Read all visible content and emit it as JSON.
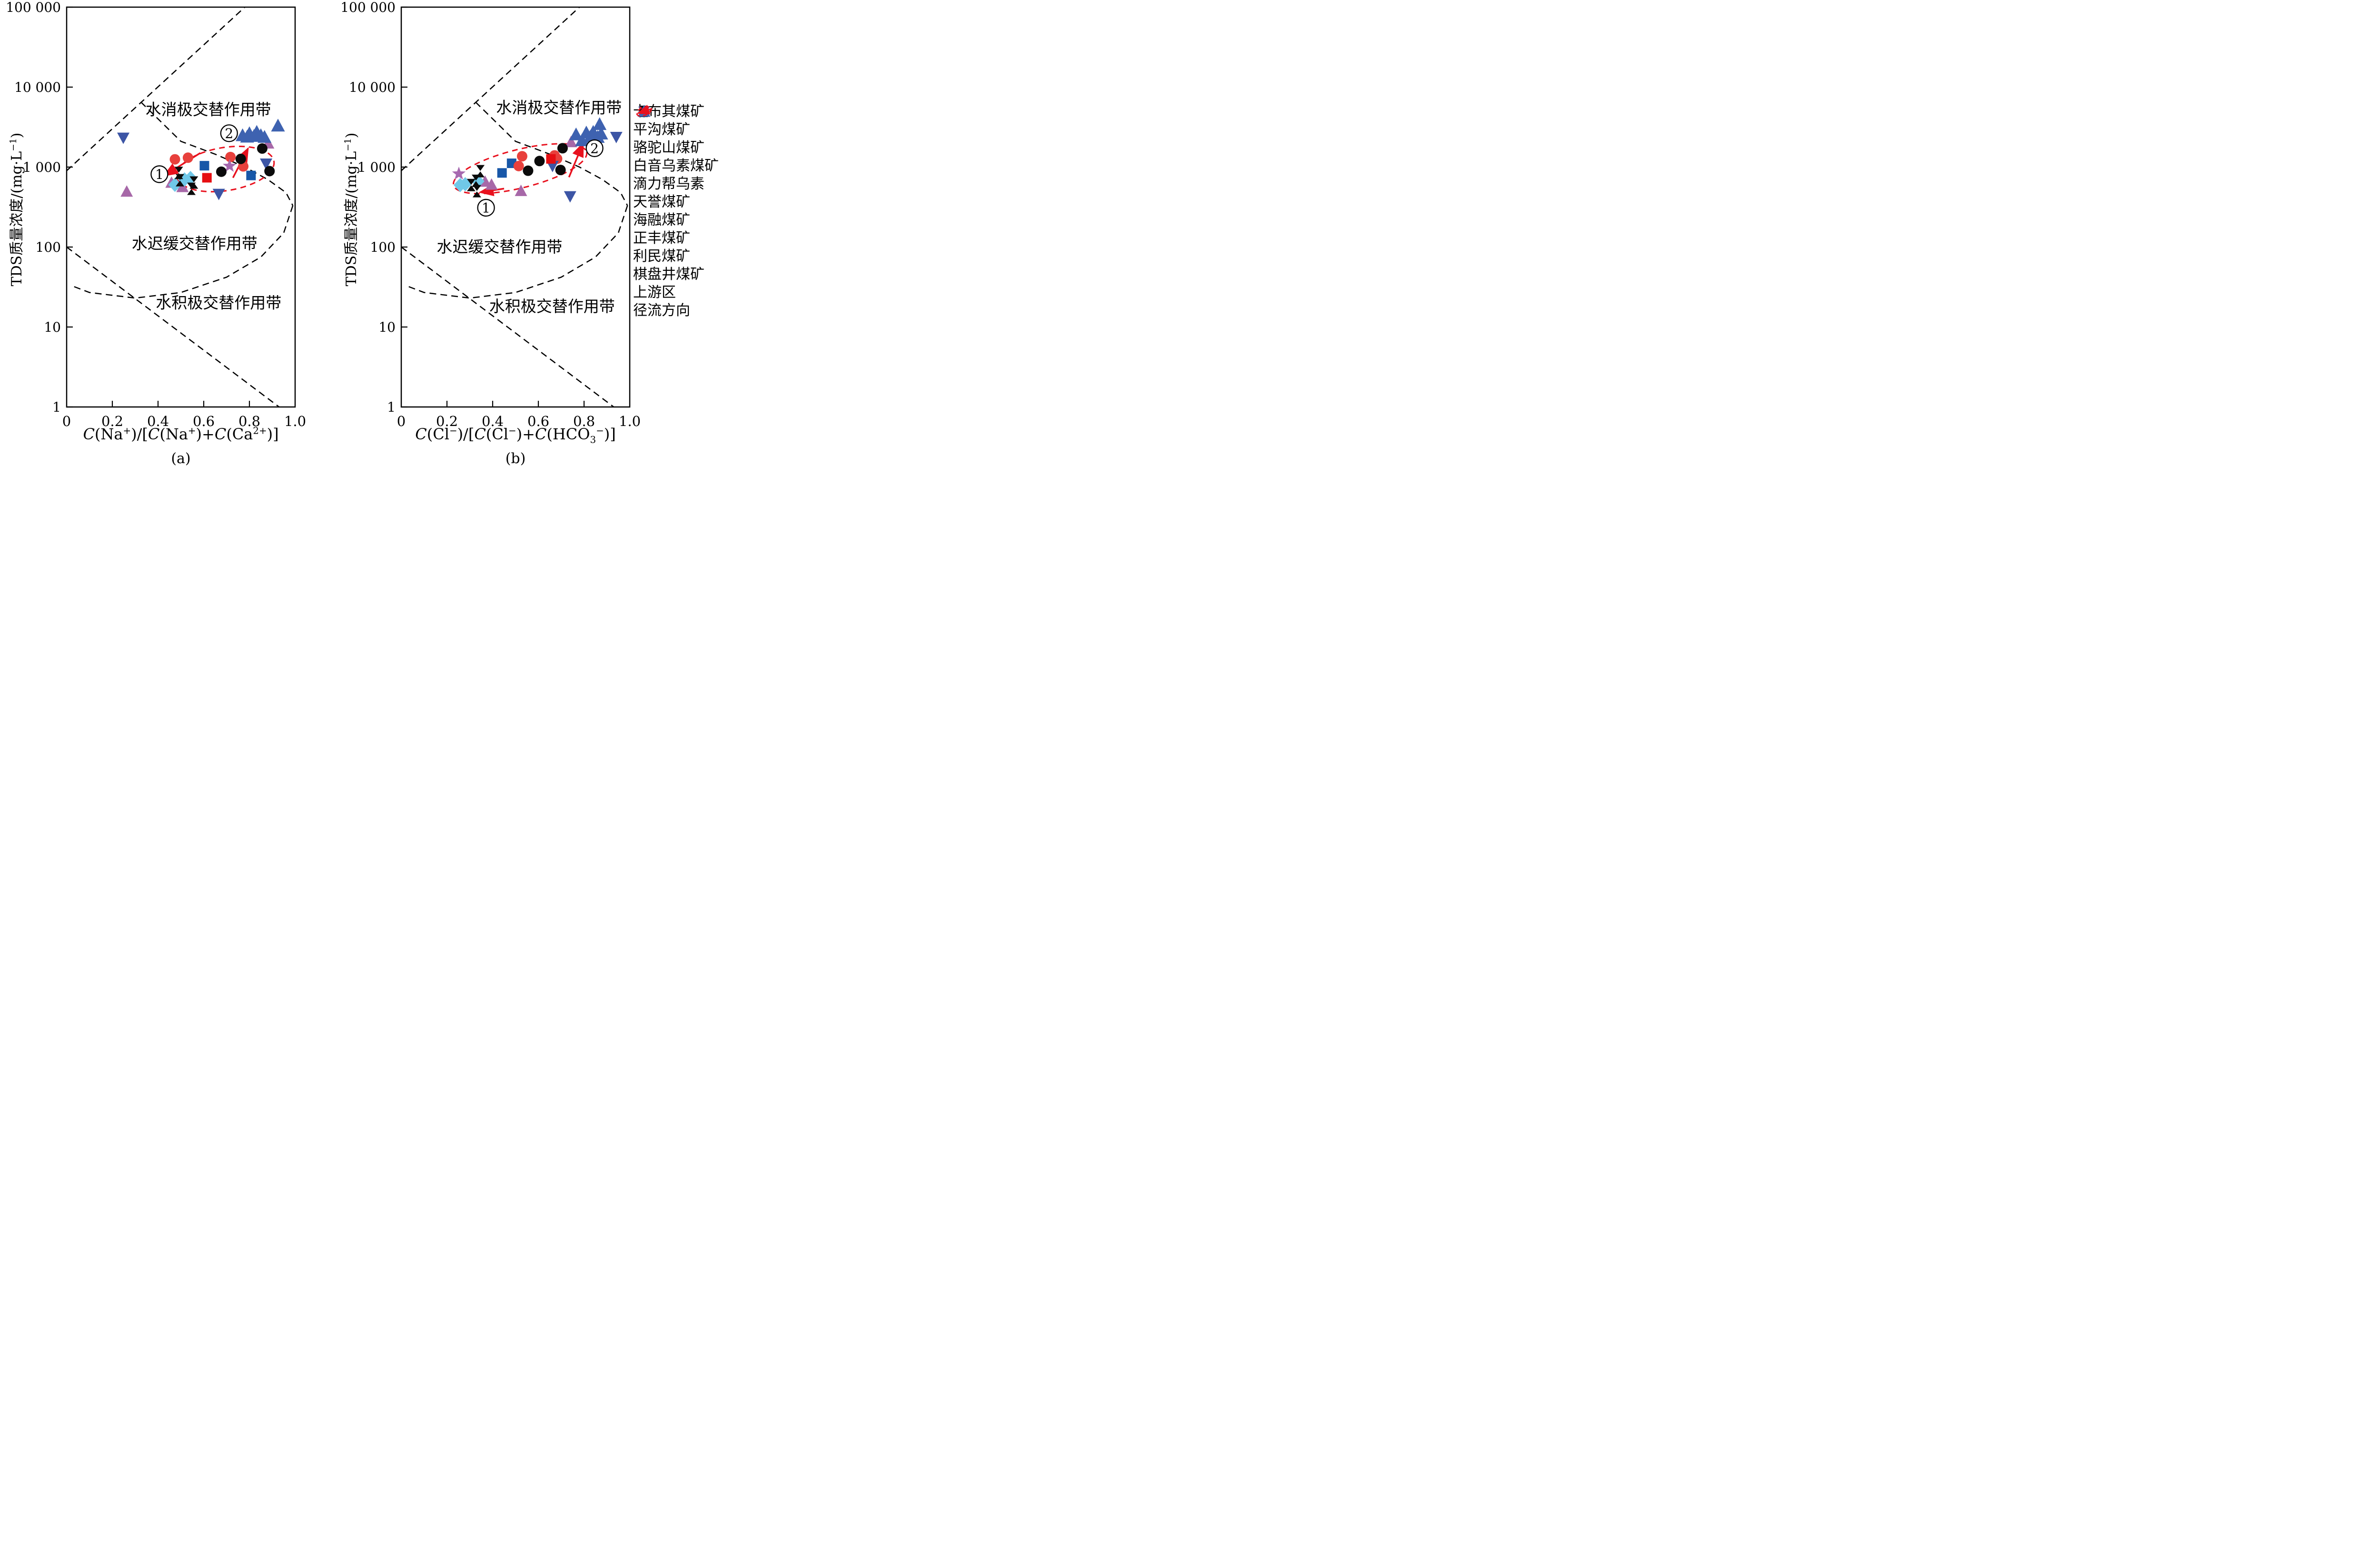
{
  "page": {
    "background": "#ffffff",
    "accent_red": "#E8111E"
  },
  "chart_data": {
    "type": "scatter",
    "log_y": true,
    "y_axis": {
      "label_html": "TDS质量浓度/(mg·L<sup>−1</sup>)",
      "scale": "log",
      "range": [
        1,
        100000
      ],
      "tick_labels": [
        "1",
        "10",
        "100",
        "1 000",
        "10 000",
        "100 000"
      ]
    },
    "x_axis": {
      "range": [
        0,
        1
      ],
      "tick_labels": [
        "0",
        "0.2",
        "0.4",
        "0.6",
        "0.8",
        "1.0"
      ],
      "tick_values": [
        0,
        0.2,
        0.4,
        0.6,
        0.8,
        1.0
      ]
    },
    "zone_labels": [
      "水消极交替作用带",
      "水迟缓交替作用带",
      "水积极交替作用带"
    ],
    "zones": {
      "upper_line": [
        [
          0,
          900
        ],
        [
          0.78,
          100000
        ]
      ],
      "lens_top": [
        [
          0.325,
          6500
        ],
        [
          0.5,
          2100
        ],
        [
          0.65,
          1450
        ],
        [
          0.78,
          1000
        ],
        [
          0.88,
          700
        ],
        [
          0.96,
          480
        ],
        [
          0.99,
          330
        ]
      ],
      "lens_bottom": [
        [
          0.99,
          330
        ],
        [
          0.95,
          150
        ],
        [
          0.85,
          75
        ],
        [
          0.7,
          42
        ],
        [
          0.5,
          27
        ],
        [
          0.3,
          23
        ],
        [
          0.1,
          27
        ],
        [
          0.02,
          33
        ]
      ],
      "lower_line": [
        [
          0,
          100
        ],
        [
          0.93,
          1
        ]
      ]
    },
    "panels": [
      {
        "id": "a",
        "tag": "(a)",
        "x_label_html": "<i>C</i>(Na<sup>+</sup>)/[<i>C</i>(Na<sup>+</sup>)+<i>C</i>(Ca<sup>2+</sup>)]",
        "zone_label_pos": [
          [
            0.62,
            5200
          ],
          [
            0.56,
            110
          ],
          [
            0.665,
            20
          ]
        ],
        "ellipse": {
          "cx": 0.695,
          "cy": 945,
          "rx": 0.215,
          "ry_log": 0.27,
          "rotate": -9
        },
        "arrows": [
          [
            [
              0.585,
              1500
            ],
            [
              0.427,
              780
            ]
          ],
          [
            [
              0.728,
              735
            ],
            [
              0.794,
              1710
            ]
          ]
        ],
        "circled": [
          {
            "label": "1",
            "x": 0.406,
            "y": 815
          },
          {
            "label": "2",
            "x": 0.711,
            "y": 2650
          }
        ]
      },
      {
        "id": "b",
        "tag": "(b)",
        "x_label_html": "<i>C</i>(Cl<sup>−</sup>)/[<i>C</i>(Cl<sup>−</sup>)+<i>C</i>(HCO<sub>3</sub><sup>−</sup>)]",
        "zone_label_pos": [
          [
            0.69,
            5500
          ],
          [
            0.43,
            100
          ],
          [
            0.66,
            18
          ]
        ],
        "ellipse": {
          "cx": 0.52,
          "cy": 955,
          "rx": 0.3,
          "ry_log": 0.24,
          "rotate": -14
        },
        "arrows": [
          [
            [
              0.45,
              538
            ],
            [
              0.345,
              484
            ]
          ],
          [
            [
              0.734,
              747
            ],
            [
              0.796,
              1985
            ]
          ]
        ],
        "circled": [
          {
            "label": "1",
            "x": 0.371,
            "y": 310
          },
          {
            "label": "2",
            "x": 0.846,
            "y": 1720
          }
        ]
      }
    ],
    "series": [
      {
        "name": "卡布其煤矿",
        "marker": "square",
        "color": "#1857A8",
        "a": [
          [
            0.603,
            1040
          ],
          [
            0.807,
            785
          ]
        ],
        "b": [
          [
            0.441,
            845
          ],
          [
            0.483,
            1115
          ]
        ]
      },
      {
        "name": "平沟煤矿",
        "marker": "circle",
        "color": "#E8403C",
        "a": [
          [
            0.474,
            1250
          ],
          [
            0.531,
            1310
          ],
          [
            0.717,
            1335
          ],
          [
            0.773,
            1020
          ]
        ],
        "b": [
          [
            0.514,
            1030
          ],
          [
            0.529,
            1365
          ],
          [
            0.671,
            1400
          ],
          [
            0.682,
            1270
          ]
        ]
      },
      {
        "name": "骆驼山煤矿",
        "marker": "triangle-up",
        "color": "#A768A8",
        "a": [
          [
            0.263,
            495
          ],
          [
            0.459,
            640
          ],
          [
            0.507,
            565
          ],
          [
            0.882,
            1980
          ]
        ],
        "b": [
          [
            0.367,
            660
          ],
          [
            0.395,
            605
          ],
          [
            0.524,
            505
          ],
          [
            0.743,
            2060
          ]
        ]
      },
      {
        "name": "白音乌素煤矿",
        "marker": "triangle-down",
        "color": "#3C55A5",
        "a": [
          [
            0.248,
            2320
          ],
          [
            0.666,
            460
          ],
          [
            0.873,
            1100
          ]
        ],
        "b": [
          [
            0.662,
            1030
          ],
          [
            0.739,
            430
          ],
          [
            0.941,
            2370
          ]
        ]
      },
      {
        "name": "滴力帮乌素",
        "marker": "diamond",
        "color": "#70C8E8",
        "a": [
          [
            0.474,
            600
          ],
          [
            0.516,
            700
          ],
          [
            0.542,
            730
          ]
        ],
        "b": [
          [
            0.258,
            596
          ],
          [
            0.28,
            611
          ],
          [
            0.335,
            665
          ]
        ]
      },
      {
        "name": "天誉煤矿",
        "marker": "hourglass",
        "color": "#0b0b0b",
        "a": [
          [
            0.491,
            845
          ],
          [
            0.496,
            685
          ],
          [
            0.546,
            535
          ],
          [
            0.557,
            640
          ]
        ],
        "b": [
          [
            0.306,
            596
          ],
          [
            0.327,
            673
          ],
          [
            0.331,
            500
          ],
          [
            0.346,
            888
          ]
        ]
      },
      {
        "name": "海融煤矿",
        "marker": "star",
        "color": "#A76AB0",
        "a": [
          [
            0.713,
            1030
          ]
        ],
        "b": [
          [
            0.252,
            825
          ]
        ]
      },
      {
        "name": "正丰煤矿",
        "marker": "square",
        "color": "#E60E12",
        "a": [
          [
            0.614,
            735
          ]
        ],
        "b": [
          [
            0.655,
            1265
          ]
        ]
      },
      {
        "name": "利民煤矿",
        "marker": "circle",
        "color": "#0b0b0b",
        "a": [
          [
            0.677,
            875
          ],
          [
            0.762,
            1265
          ],
          [
            0.856,
            1706
          ],
          [
            0.888,
            890
          ]
        ],
        "b": [
          [
            0.555,
            900
          ],
          [
            0.605,
            1190
          ],
          [
            0.697,
            920
          ],
          [
            0.706,
            1720
          ]
        ]
      },
      {
        "name": "棋盘井煤矿",
        "marker": "triangle-up",
        "color": "#3E62B0",
        "size": 1.12,
        "a": [
          [
            0.77,
            2500
          ],
          [
            0.79,
            2400
          ],
          [
            0.8,
            2650
          ],
          [
            0.82,
            2450
          ],
          [
            0.832,
            2750
          ],
          [
            0.85,
            2500
          ],
          [
            0.866,
            2380
          ],
          [
            0.925,
            3300
          ]
        ],
        "b": [
          [
            0.765,
            2560
          ],
          [
            0.791,
            2160
          ],
          [
            0.81,
            2700
          ],
          [
            0.827,
            2390
          ],
          [
            0.84,
            2750
          ],
          [
            0.86,
            2380
          ],
          [
            0.875,
            2620
          ],
          [
            0.868,
            3440
          ]
        ]
      }
    ],
    "legend_extra": [
      {
        "label": "上游区",
        "symbol": "ellipse"
      },
      {
        "label": "径流方向",
        "symbol": "arrow"
      }
    ]
  }
}
